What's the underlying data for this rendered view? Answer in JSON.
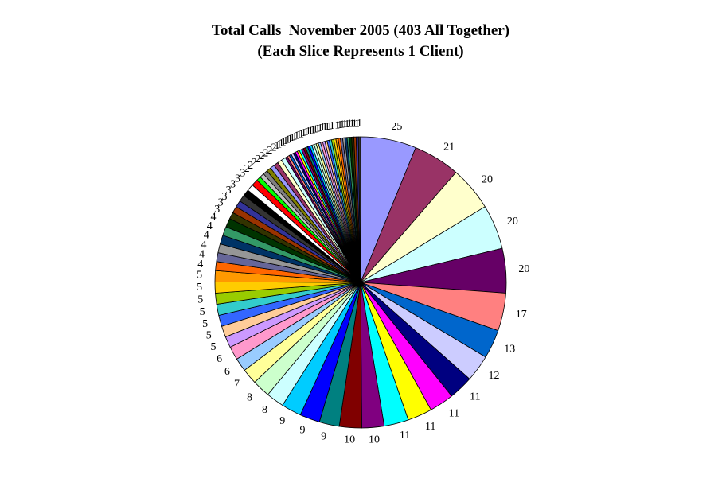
{
  "chart_data": {
    "type": "pie",
    "title": "Total Calls  November 2005 (403 All Together)",
    "subtitle": "(Each Slice Represents 1 Client)",
    "values": [
      25,
      21,
      20,
      20,
      20,
      17,
      13,
      12,
      11,
      11,
      11,
      11,
      10,
      10,
      9,
      9,
      9,
      8,
      8,
      7,
      6,
      6,
      5,
      5,
      5,
      5,
      5,
      5,
      5,
      4,
      4,
      4,
      4,
      4,
      4,
      3,
      3,
      3,
      3,
      3,
      3,
      3,
      2,
      2,
      2,
      2,
      2,
      2,
      2,
      2,
      1,
      1,
      1,
      1,
      1,
      1,
      1,
      1,
      1,
      1,
      1,
      1,
      1,
      1,
      1,
      1,
      1,
      1,
      1,
      1,
      1,
      1,
      1,
      1,
      1,
      1,
      1,
      1,
      1,
      1,
      1,
      1,
      1,
      1,
      1
    ],
    "colors": [
      "#9999ff",
      "#993366",
      "#ffffcc",
      "#ccffff",
      "#660066",
      "#ff8080",
      "#0066cc",
      "#ccccff",
      "#000080",
      "#ff00ff",
      "#ffff00",
      "#00ffff",
      "#800080",
      "#800000",
      "#008080",
      "#0000ff",
      "#00ccff",
      "#ccffff",
      "#ccffcc",
      "#ffff99",
      "#99ccff",
      "#ff99cc",
      "#cc99ff",
      "#ffcc99",
      "#3366ff",
      "#33cccc",
      "#99cc00",
      "#ffcc00",
      "#ff9900",
      "#ff6600",
      "#666699",
      "#969696",
      "#003366",
      "#339966",
      "#003300",
      "#333300",
      "#993300",
      "#333399",
      "#333333",
      "#000000",
      "#ffffff",
      "#ff0000",
      "#00ff00",
      "#c0c0c0",
      "#808080",
      "#808000"
    ]
  }
}
